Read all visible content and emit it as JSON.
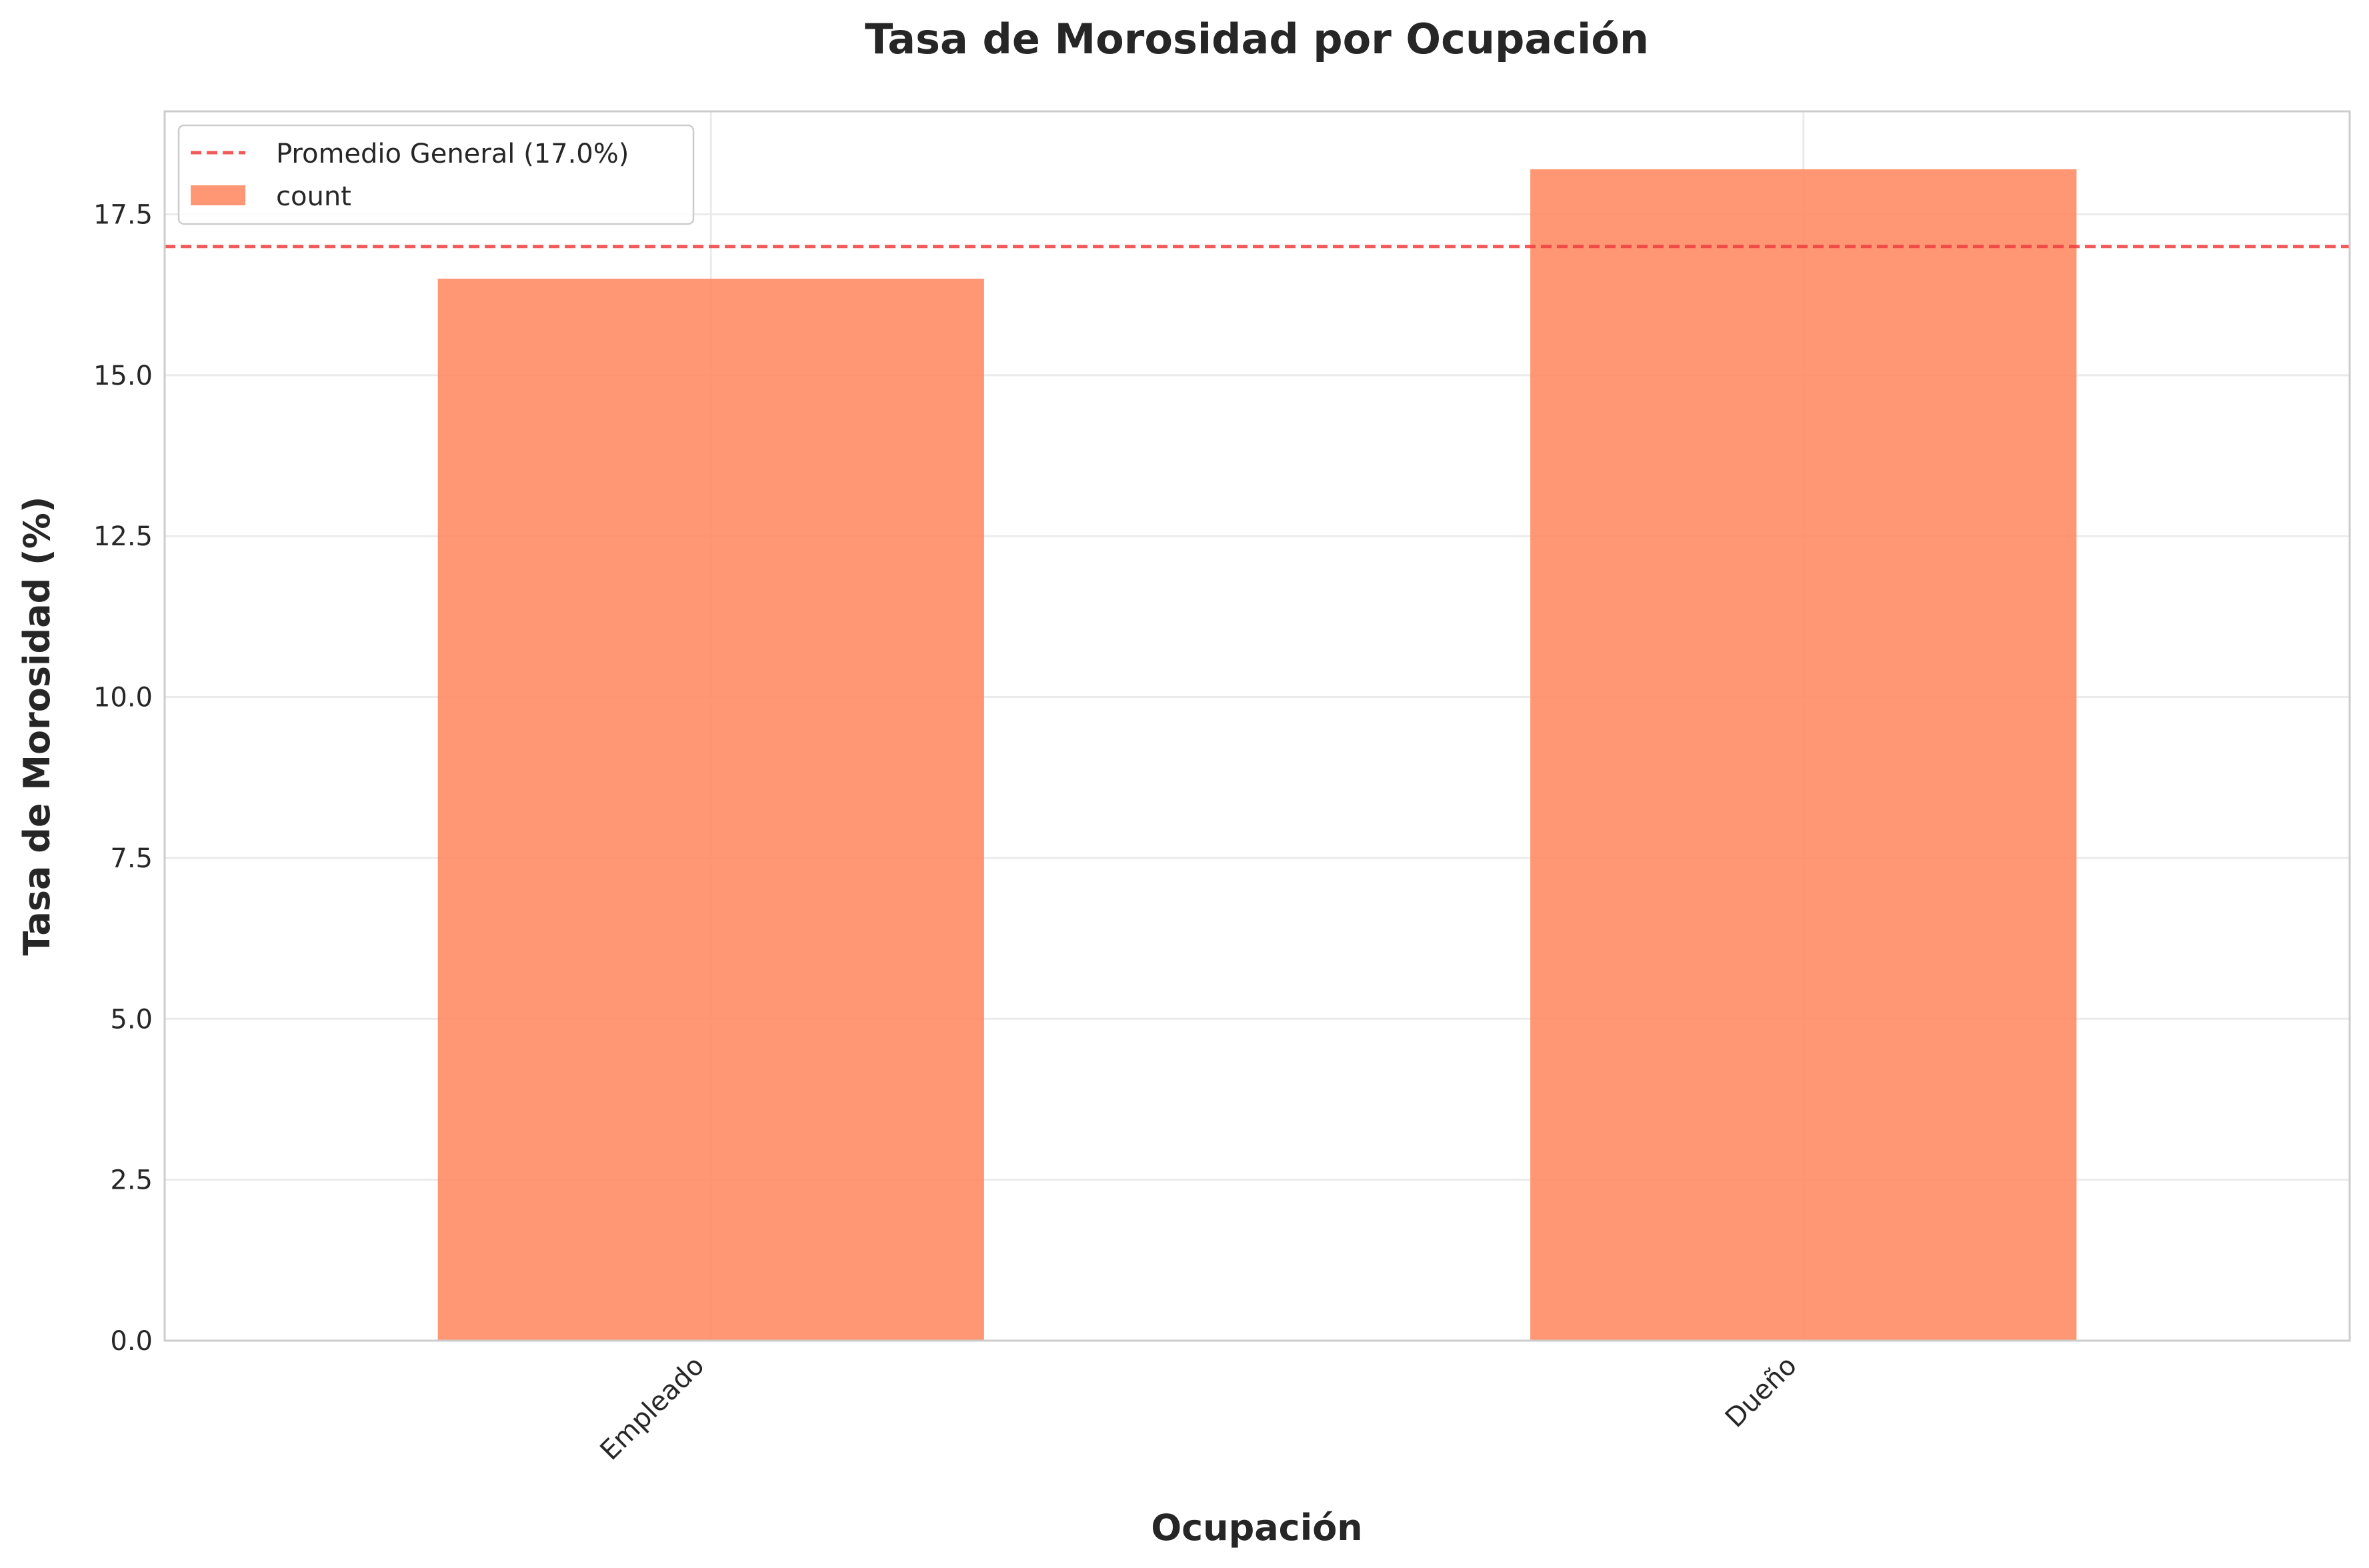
{
  "chart_data": {
    "type": "bar",
    "title": "Tasa de Morosidad por Ocupación",
    "xlabel": "Ocupación",
    "ylabel": "Tasa de Morosidad (%)",
    "categories": [
      "Empleado",
      "Dueño"
    ],
    "series": [
      {
        "name": "count",
        "values": [
          16.5,
          18.2
        ],
        "color": "#ff8c66"
      }
    ],
    "reference_line": {
      "label": "Promedio General (17.0%)",
      "value": 17.0,
      "color": "#f03c3c",
      "style": "dashed"
    },
    "ylim": [
      0,
      19.1
    ],
    "yticks": [
      "0.0",
      "2.5",
      "5.0",
      "7.5",
      "10.0",
      "12.5",
      "15.0",
      "17.5"
    ],
    "ytick_values": [
      0,
      2.5,
      5,
      7.5,
      10,
      12.5,
      15,
      17.5
    ],
    "grid": true,
    "legend_position": "top-left",
    "xtick_rotation": "45 degrees"
  }
}
